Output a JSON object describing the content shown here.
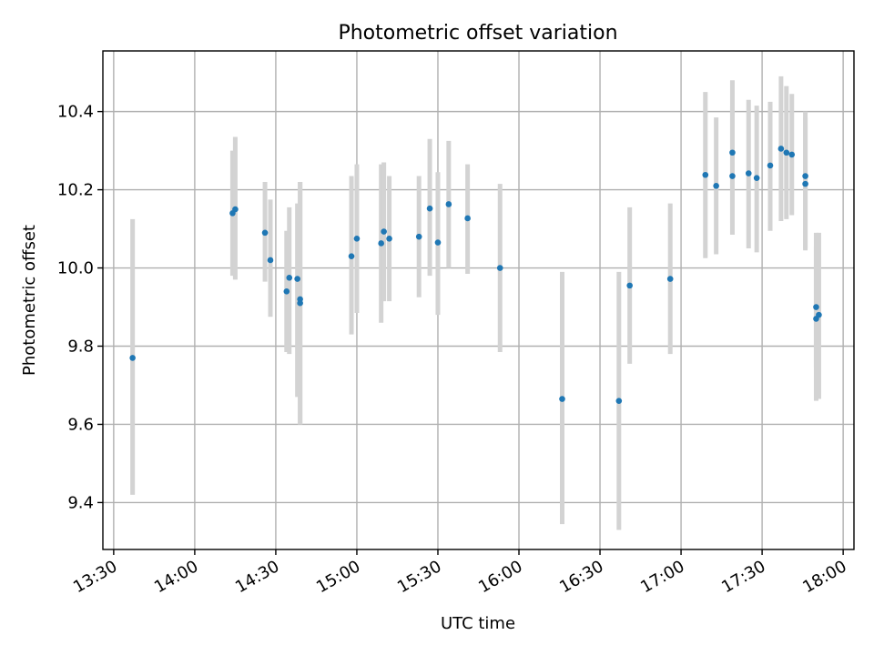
{
  "chart_data": {
    "type": "scatter",
    "title": "Photometric offset variation",
    "xlabel": "UTC time",
    "ylabel": "Photometric offset",
    "xlim": [
      "13:26",
      "18:04"
    ],
    "ylim": [
      9.28,
      10.555
    ],
    "grid": true,
    "x_ticks": [
      "13:30",
      "14:00",
      "14:30",
      "15:00",
      "15:30",
      "16:00",
      "16:30",
      "17:00",
      "17:30",
      "18:00"
    ],
    "y_ticks": [
      9.4,
      9.6,
      9.8,
      10.0,
      10.2,
      10.4
    ],
    "y_tick_labels": [
      "9.4",
      "9.6",
      "9.8",
      "10.0",
      "10.2",
      "10.4"
    ],
    "colors": {
      "point": "#1f77b4",
      "errorbar": "#d3d3d3"
    },
    "series": [
      {
        "x": [
          "13:37",
          "14:14",
          "14:15",
          "14:26",
          "14:28",
          "14:34",
          "14:35",
          "14:38",
          "14:39",
          "14:39",
          "14:58",
          "15:00",
          "15:09",
          "15:10",
          "15:12",
          "15:23",
          "15:27",
          "15:30",
          "15:34",
          "15:41",
          "15:53",
          "16:16",
          "16:37",
          "16:41",
          "16:56",
          "17:09",
          "17:13",
          "17:19",
          "17:19",
          "17:25",
          "17:28",
          "17:33",
          "17:37",
          "17:39",
          "17:41",
          "17:46",
          "17:46",
          "17:50",
          "17:50",
          "17:51"
        ],
        "y": [
          9.77,
          10.14,
          10.15,
          10.09,
          10.02,
          9.94,
          9.975,
          9.972,
          9.92,
          9.91,
          10.03,
          10.075,
          10.063,
          10.093,
          10.075,
          10.08,
          10.152,
          10.065,
          10.163,
          10.127,
          10.0,
          9.665,
          9.66,
          9.955,
          9.972,
          10.238,
          10.21,
          10.295,
          10.235,
          10.242,
          10.23,
          10.262,
          10.305,
          10.295,
          10.29,
          10.235,
          10.215,
          9.9,
          9.87,
          9.88
        ],
        "y_low": [
          9.42,
          9.98,
          9.97,
          9.965,
          9.875,
          9.785,
          9.78,
          9.67,
          9.6,
          9.6,
          9.83,
          9.885,
          9.86,
          9.915,
          9.915,
          9.925,
          9.98,
          9.88,
          10.0,
          9.985,
          9.785,
          9.345,
          9.33,
          9.755,
          9.78,
          10.025,
          10.035,
          10.115,
          10.085,
          10.05,
          10.04,
          10.095,
          10.12,
          10.125,
          10.135,
          10.045,
          10.05,
          9.745,
          9.66,
          9.665
        ],
        "y_high": [
          10.125,
          10.3,
          10.335,
          10.22,
          10.175,
          10.095,
          10.155,
          10.165,
          10.22,
          10.22,
          10.235,
          10.265,
          10.265,
          10.27,
          10.235,
          10.235,
          10.33,
          10.245,
          10.325,
          10.265,
          10.215,
          9.99,
          9.99,
          10.155,
          10.165,
          10.45,
          10.385,
          10.48,
          10.415,
          10.43,
          10.415,
          10.425,
          10.49,
          10.465,
          10.445,
          10.4,
          10.385,
          10.055,
          10.09,
          10.09
        ]
      }
    ]
  }
}
